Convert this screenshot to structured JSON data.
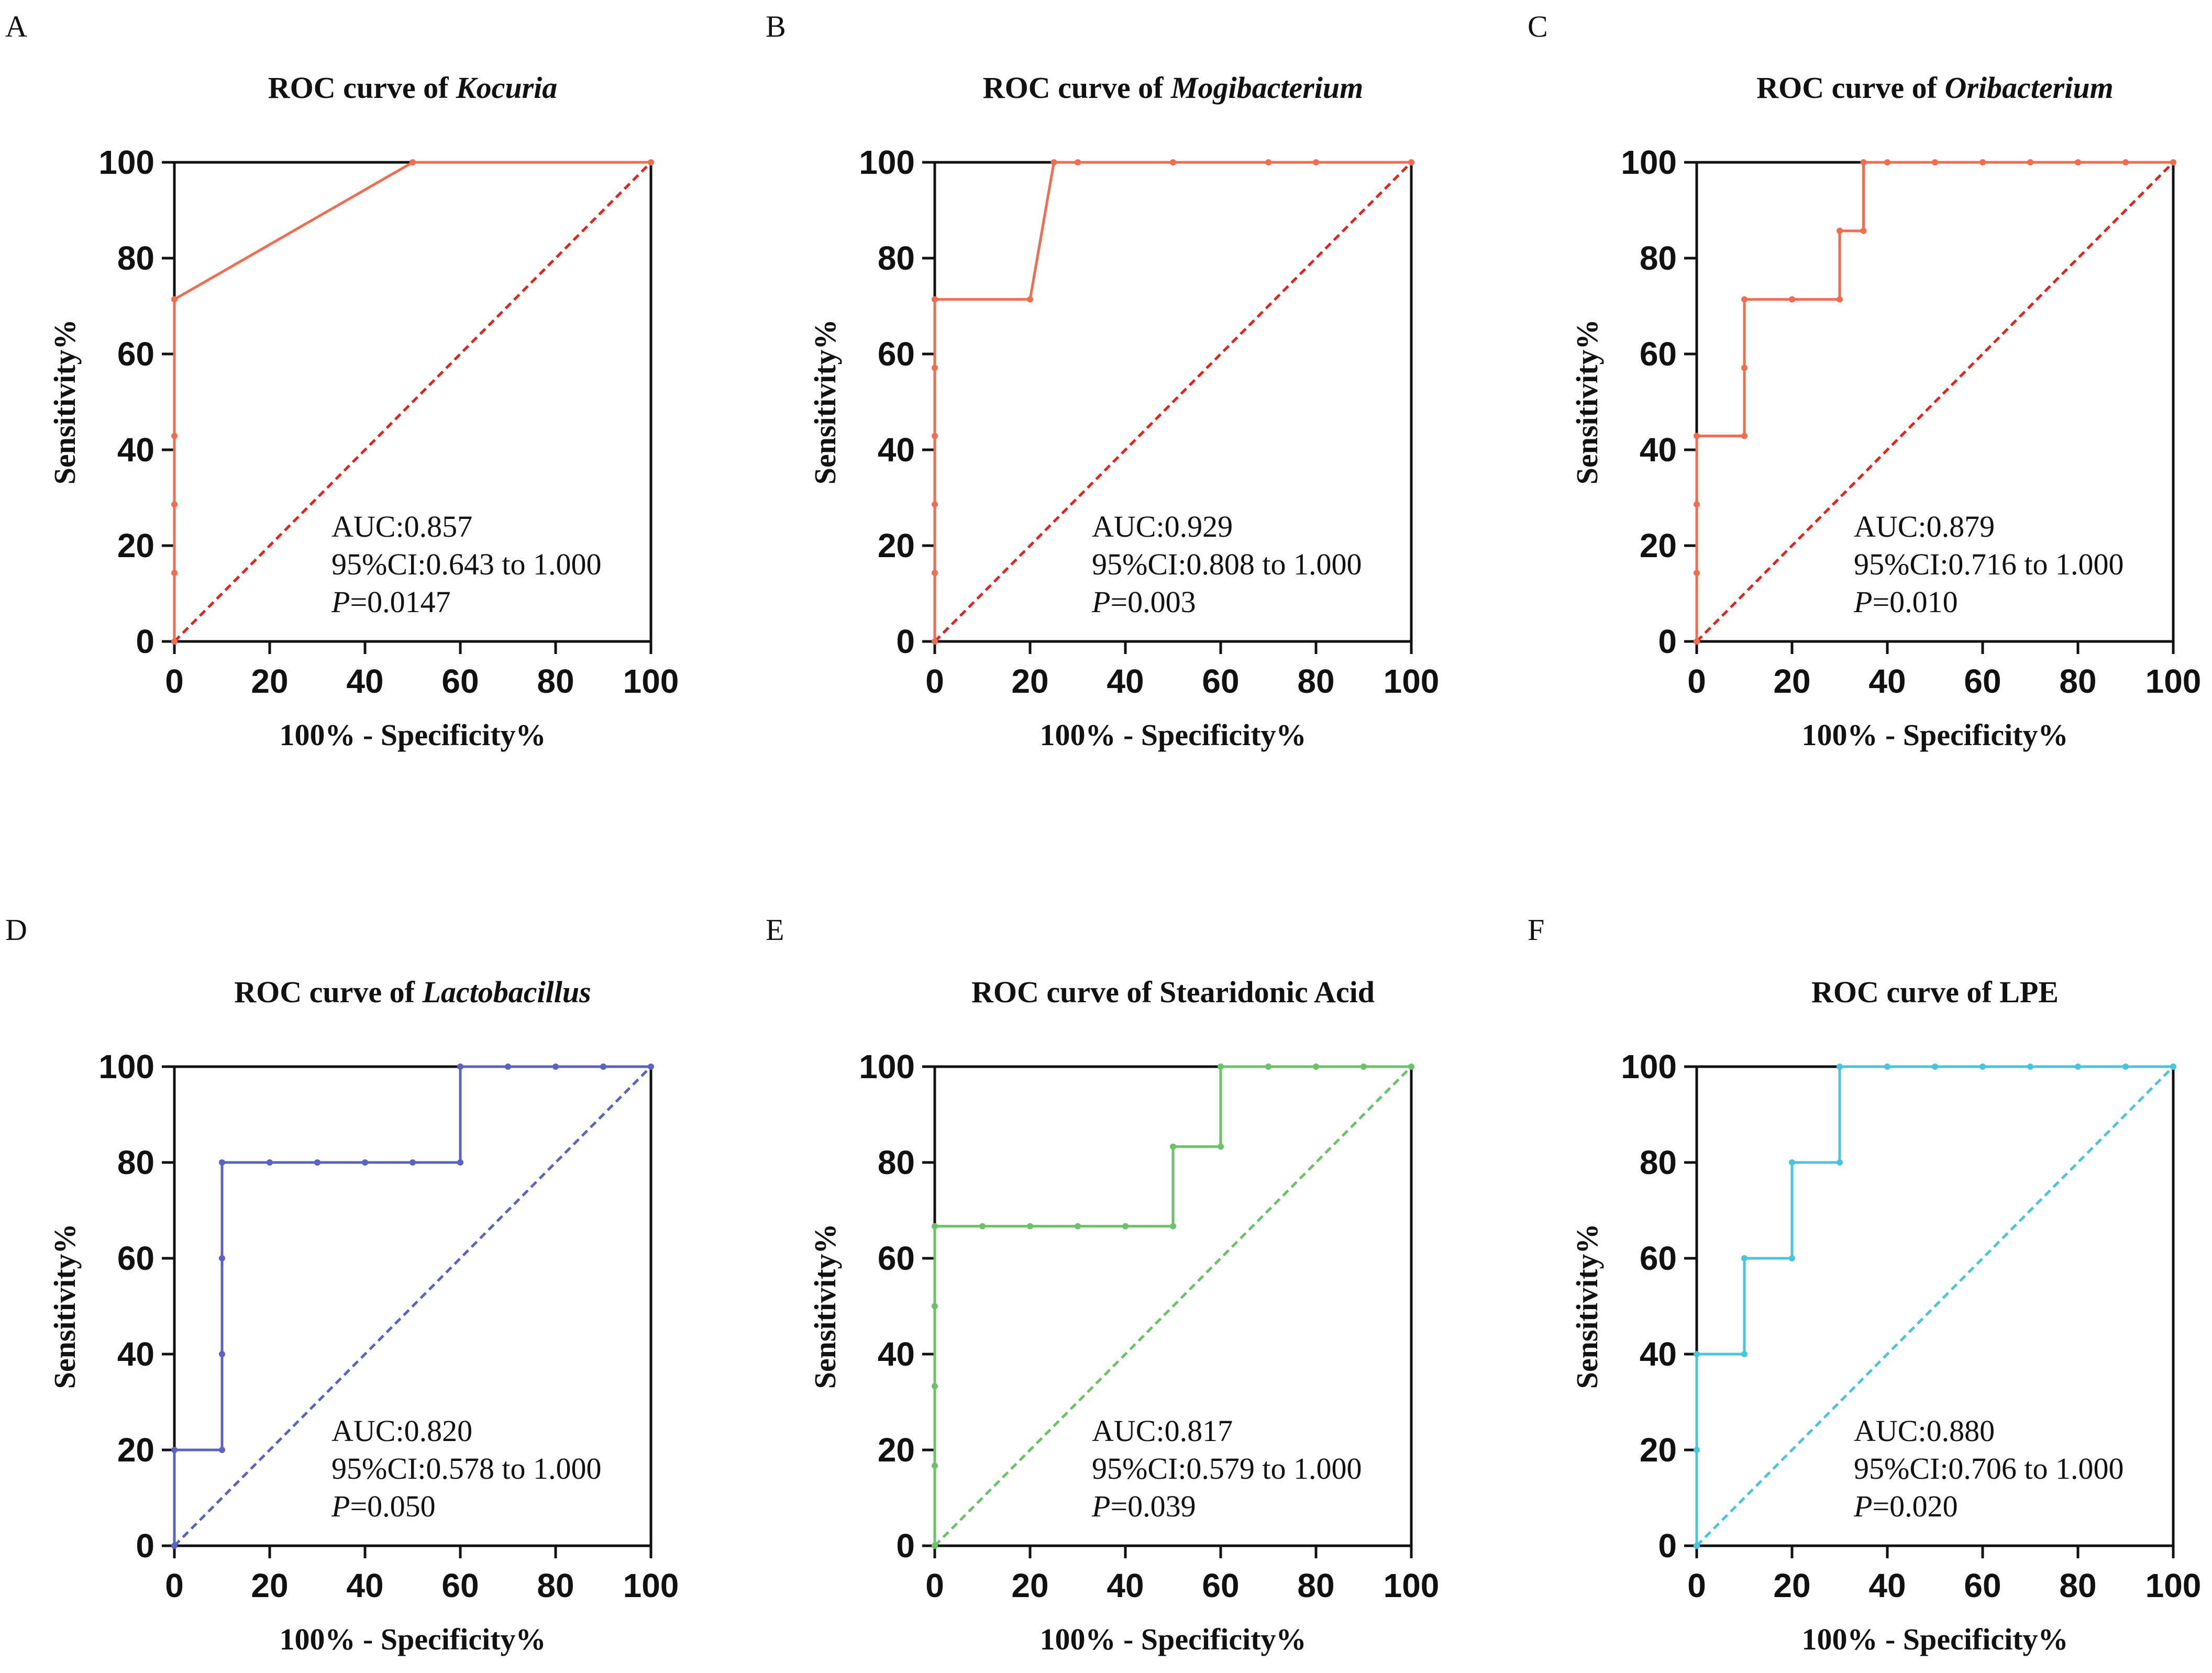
{
  "figure": {
    "panels": [
      "A",
      "B",
      "C",
      "D",
      "E",
      "F"
    ]
  },
  "chart_data": [
    {
      "panel": "A",
      "type": "line",
      "title_prefix": "ROC curve of ",
      "title_name": "Kocuria",
      "title_name_italic": true,
      "xlabel": "100% - Specificity%",
      "ylabel": "Sensitivity%",
      "xlim": [
        0,
        100
      ],
      "ylim": [
        0,
        100
      ],
      "xticks": [
        "0",
        "20",
        "40",
        "60",
        "80",
        "100"
      ],
      "yticks": [
        "0",
        "20",
        "40",
        "60",
        "80",
        "100"
      ],
      "color": "#f26d4f",
      "ref_color": "#e8201c",
      "series": [
        {
          "name": "ROC",
          "x": [
            0,
            0,
            0,
            0,
            0,
            0,
            50,
            100
          ],
          "y": [
            0,
            14.3,
            28.6,
            42.9,
            71.4,
            71.4,
            100,
            100
          ]
        },
        {
          "name": "Reference",
          "x": [
            0,
            100
          ],
          "y": [
            0,
            100
          ]
        }
      ],
      "auc_text": "AUC:0.857",
      "ci_text": "95%CI:0.643 to 1.000",
      "p_letter": "P",
      "p_value": "=0.0147"
    },
    {
      "panel": "B",
      "type": "line",
      "title_prefix": "ROC curve of ",
      "title_name": "Mogibacterium",
      "title_name_italic": true,
      "xlabel": "100% - Specificity%",
      "ylabel": "Sensitivity%",
      "xlim": [
        0,
        100
      ],
      "ylim": [
        0,
        100
      ],
      "xticks": [
        "0",
        "20",
        "40",
        "60",
        "80",
        "100"
      ],
      "yticks": [
        "0",
        "20",
        "40",
        "60",
        "80",
        "100"
      ],
      "color": "#f26d4f",
      "ref_color": "#e8201c",
      "series": [
        {
          "name": "ROC",
          "x": [
            0,
            0,
            0,
            0,
            0,
            0,
            0,
            20,
            25,
            30,
            50,
            70,
            80,
            100
          ],
          "y": [
            0,
            14.3,
            28.6,
            42.9,
            57.1,
            71.4,
            71.4,
            71.4,
            100,
            100,
            100,
            100,
            100,
            100
          ]
        },
        {
          "name": "Reference",
          "x": [
            0,
            100
          ],
          "y": [
            0,
            100
          ]
        }
      ],
      "auc_text": "AUC:0.929",
      "ci_text": "95%CI:0.808 to 1.000",
      "p_letter": "P",
      "p_value": "=0.003"
    },
    {
      "panel": "C",
      "type": "line",
      "title_prefix": "ROC curve of ",
      "title_name": "Oribacterium",
      "title_name_italic": true,
      "xlabel": "100% - Specificity%",
      "ylabel": "Sensitivity%",
      "xlim": [
        0,
        100
      ],
      "ylim": [
        0,
        100
      ],
      "xticks": [
        "0",
        "20",
        "40",
        "60",
        "80",
        "100"
      ],
      "yticks": [
        "0",
        "20",
        "40",
        "60",
        "80",
        "100"
      ],
      "color": "#f26d4f",
      "ref_color": "#e8201c",
      "series": [
        {
          "name": "ROC",
          "x": [
            0,
            0,
            0,
            0,
            10,
            10,
            10,
            20,
            30,
            30,
            35,
            35,
            40,
            50,
            60,
            70,
            80,
            90,
            100
          ],
          "y": [
            0,
            14.3,
            28.6,
            42.9,
            42.9,
            57.1,
            71.4,
            71.4,
            71.4,
            85.7,
            85.7,
            100,
            100,
            100,
            100,
            100,
            100,
            100,
            100
          ]
        },
        {
          "name": "Reference",
          "x": [
            0,
            100
          ],
          "y": [
            0,
            100
          ]
        }
      ],
      "auc_text": "AUC:0.879",
      "ci_text": "95%CI:0.716 to 1.000",
      "p_letter": "P",
      "p_value": "=0.010"
    },
    {
      "panel": "D",
      "type": "line",
      "title_prefix": "ROC curve of ",
      "title_name": "Lactobacillus",
      "title_name_italic": true,
      "xlabel": "100% - Specificity%",
      "ylabel": "Sensitivity%",
      "xlim": [
        0,
        100
      ],
      "ylim": [
        0,
        100
      ],
      "xticks": [
        "0",
        "20",
        "40",
        "60",
        "80",
        "100"
      ],
      "yticks": [
        "0",
        "20",
        "40",
        "60",
        "80",
        "100"
      ],
      "color": "#5a63c4",
      "ref_color": "#5a63c4",
      "series": [
        {
          "name": "ROC",
          "x": [
            0,
            0,
            10,
            10,
            10,
            10,
            20,
            30,
            40,
            50,
            60,
            60,
            70,
            80,
            90,
            100
          ],
          "y": [
            0,
            20,
            20,
            40,
            60,
            80,
            80,
            80,
            80,
            80,
            80,
            100,
            100,
            100,
            100,
            100
          ]
        },
        {
          "name": "Reference",
          "x": [
            0,
            100
          ],
          "y": [
            0,
            100
          ]
        }
      ],
      "auc_text": "AUC:0.820",
      "ci_text": "95%CI:0.578 to 1.000",
      "p_letter": "P",
      "p_value": "=0.050"
    },
    {
      "panel": "E",
      "type": "line",
      "title_prefix": "ROC curve of ",
      "title_name": "Stearidonic Acid",
      "title_name_italic": false,
      "xlabel": "100% - Specificity%",
      "ylabel": "Sensitivity%",
      "xlim": [
        0,
        100
      ],
      "ylim": [
        0,
        100
      ],
      "xticks": [
        "0",
        "20",
        "40",
        "60",
        "80",
        "100"
      ],
      "yticks": [
        "0",
        "20",
        "40",
        "60",
        "80",
        "100"
      ],
      "color": "#6cc266",
      "ref_color": "#6cc266",
      "series": [
        {
          "name": "ROC",
          "x": [
            0,
            0,
            0,
            0,
            0,
            0,
            10,
            20,
            30,
            40,
            50,
            50,
            60,
            60,
            70,
            80,
            90,
            100
          ],
          "y": [
            0,
            16.7,
            33.3,
            50,
            66.7,
            66.7,
            66.7,
            66.7,
            66.7,
            66.7,
            66.7,
            83.3,
            83.3,
            100,
            100,
            100,
            100,
            100
          ]
        },
        {
          "name": "Reference",
          "x": [
            0,
            100
          ],
          "y": [
            0,
            100
          ]
        }
      ],
      "auc_text": "AUC:0.817",
      "ci_text": "95%CI:0.579 to 1.000",
      "p_letter": "P",
      "p_value": "=0.039"
    },
    {
      "panel": "F",
      "type": "line",
      "title_prefix": "ROC curve of ",
      "title_name": "LPE",
      "title_name_italic": false,
      "xlabel": "100% - Specificity%",
      "ylabel": "Sensitivity%",
      "xlim": [
        0,
        100
      ],
      "ylim": [
        0,
        100
      ],
      "xticks": [
        "0",
        "20",
        "40",
        "60",
        "80",
        "100"
      ],
      "yticks": [
        "0",
        "20",
        "40",
        "60",
        "80",
        "100"
      ],
      "color": "#49c6de",
      "ref_color": "#49c6de",
      "series": [
        {
          "name": "ROC",
          "x": [
            0,
            0,
            0,
            10,
            10,
            20,
            20,
            30,
            30,
            40,
            50,
            60,
            70,
            80,
            90,
            100
          ],
          "y": [
            0,
            20,
            40,
            40,
            60,
            60,
            80,
            80,
            100,
            100,
            100,
            100,
            100,
            100,
            100,
            100
          ]
        },
        {
          "name": "Reference",
          "x": [
            0,
            100
          ],
          "y": [
            0,
            100
          ]
        }
      ],
      "auc_text": "AUC:0.880",
      "ci_text": "95%CI:0.706 to 1.000",
      "p_letter": "P",
      "p_value": "=0.020"
    }
  ]
}
